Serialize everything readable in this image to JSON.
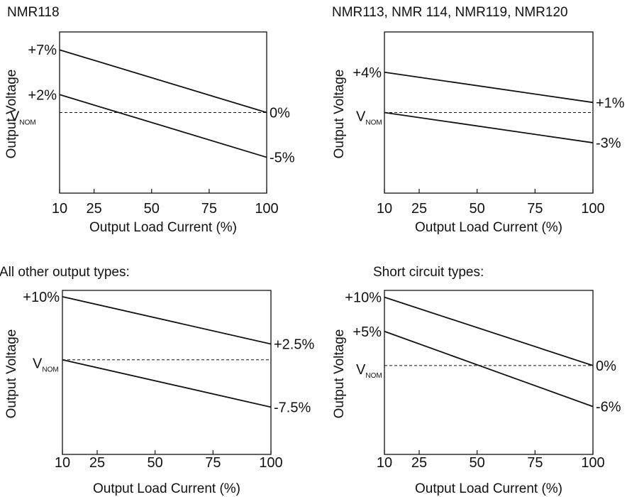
{
  "chart_data": [
    {
      "type": "line",
      "title": "NMR118",
      "xlabel": "Output Load Current (%)",
      "ylabel": "Output Voltage",
      "x_ticks": [
        "10",
        "25",
        "50",
        "75",
        "100"
      ],
      "xlim": [
        10,
        100
      ],
      "ylim": [
        -9,
        9
      ],
      "reference": {
        "label_main": "V",
        "label_sub": "NOM",
        "value": 0
      },
      "series": [
        {
          "x": [
            10,
            100
          ],
          "y": [
            7,
            0
          ],
          "start_label": "+7%",
          "end_label": "0%"
        },
        {
          "x": [
            10,
            100
          ],
          "y": [
            2,
            -5
          ],
          "start_label": "+2%",
          "end_label": "-5%"
        }
      ]
    },
    {
      "type": "line",
      "title": "NMR113, NMR 114, NMR119, NMR120",
      "xlabel": "Output Load Current (%)",
      "ylabel": "Output Voltage",
      "x_ticks": [
        "10",
        "25",
        "50",
        "75",
        "100"
      ],
      "xlim": [
        10,
        100
      ],
      "ylim": [
        -8,
        8
      ],
      "reference": {
        "label_main": "V",
        "label_sub": "NOM",
        "value": 0
      },
      "series": [
        {
          "x": [
            10,
            100
          ],
          "y": [
            4,
            1
          ],
          "start_label": "+4%",
          "end_label": "+1%"
        },
        {
          "x": [
            10,
            100
          ],
          "y": [
            0,
            -3
          ],
          "start_label": "",
          "end_label": "-3%"
        }
      ]
    },
    {
      "type": "line",
      "title": "All other output types:",
      "xlabel": "Output Load Current (%)",
      "ylabel": "Output Voltage",
      "x_ticks": [
        "10",
        "25",
        "50",
        "75",
        "100"
      ],
      "xlim": [
        10,
        100
      ],
      "ylim": [
        -15,
        11
      ],
      "reference": {
        "label_main": "V",
        "label_sub": "NOM",
        "value": 0
      },
      "series": [
        {
          "x": [
            10,
            100
          ],
          "y": [
            10,
            2.5
          ],
          "start_label": "+10%",
          "end_label": "+2.5%"
        },
        {
          "x": [
            10,
            100
          ],
          "y": [
            0,
            -7.5
          ],
          "start_label": "",
          "end_label": "-7.5%"
        }
      ]
    },
    {
      "type": "line",
      "title": "Short circuit types:",
      "xlabel": "Output Load Current (%)",
      "ylabel": "Output Voltage",
      "x_ticks": [
        "10",
        "25",
        "50",
        "75",
        "100"
      ],
      "xlim": [
        10,
        100
      ],
      "ylim": [
        -13,
        11
      ],
      "reference": {
        "label_main": "V",
        "label_sub": "NOM",
        "value": 0
      },
      "series": [
        {
          "x": [
            10,
            100
          ],
          "y": [
            10,
            0
          ],
          "start_label": "+10%",
          "end_label": "0%"
        },
        {
          "x": [
            10,
            100
          ],
          "y": [
            5,
            -6
          ],
          "start_label": "+5%",
          "end_label": "-6%"
        }
      ]
    }
  ]
}
